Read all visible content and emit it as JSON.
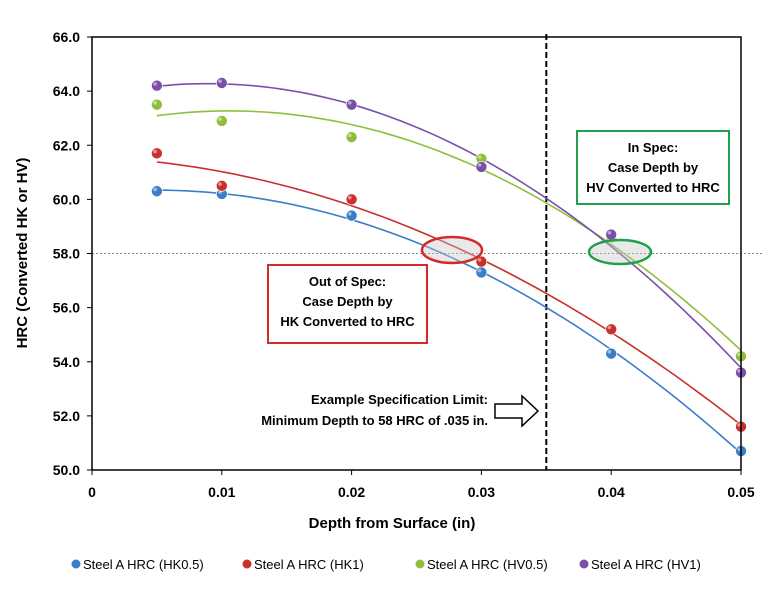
{
  "chart_data": {
    "type": "scatter",
    "title": "",
    "xlabel": "Depth from Surface (in)",
    "ylabel": "HRC (Converted HK or HV)",
    "xlim": [
      0,
      0.05
    ],
    "ylim": [
      50,
      66
    ],
    "x_ticks": [
      "0",
      "0.01",
      "0.02",
      "0.03",
      "0.04",
      "0.05"
    ],
    "y_ticks": [
      "50.0",
      "52.0",
      "54.0",
      "56.0",
      "58.0",
      "60.0",
      "62.0",
      "64.0",
      "66.0"
    ],
    "grid": false,
    "legend_position": "bottom",
    "trendline": "polynomial",
    "x": [
      0.005,
      0.01,
      0.02,
      0.03,
      0.04,
      0.05
    ],
    "series": [
      {
        "name": "Steel A HRC (HK0.5)",
        "color": "#3a7dc9",
        "values": [
          60.3,
          60.2,
          59.4,
          57.3,
          54.3,
          50.7
        ]
      },
      {
        "name": "Steel A HRC (HK1)",
        "color": "#c9302c",
        "values": [
          61.7,
          60.5,
          60.0,
          57.7,
          55.2,
          51.6
        ]
      },
      {
        "name": "Steel A HRC (HV0.5)",
        "color": "#8fbf3a",
        "values": [
          63.5,
          62.9,
          62.3,
          61.5,
          58.6,
          54.2
        ]
      },
      {
        "name": "Steel A HRC (HV1)",
        "color": "#7a4fa8",
        "values": [
          64.2,
          64.3,
          63.5,
          61.2,
          58.7,
          53.6
        ]
      }
    ],
    "reference_lines": {
      "spec_depth": 0.035,
      "spec_hrc": 58
    },
    "annotations": {
      "out_of_spec": [
        "Out of Spec:",
        "Case Depth by",
        "HK Converted to HRC"
      ],
      "in_spec": [
        "In Spec:",
        "Case Depth by",
        "HV Converted to HRC"
      ],
      "spec_limit": [
        "Example Specification Limit:",
        "Minimum Depth to 58 HRC of .035 in."
      ],
      "out_of_spec_color": "#d42a2a",
      "in_spec_color": "#1fa04a"
    }
  }
}
